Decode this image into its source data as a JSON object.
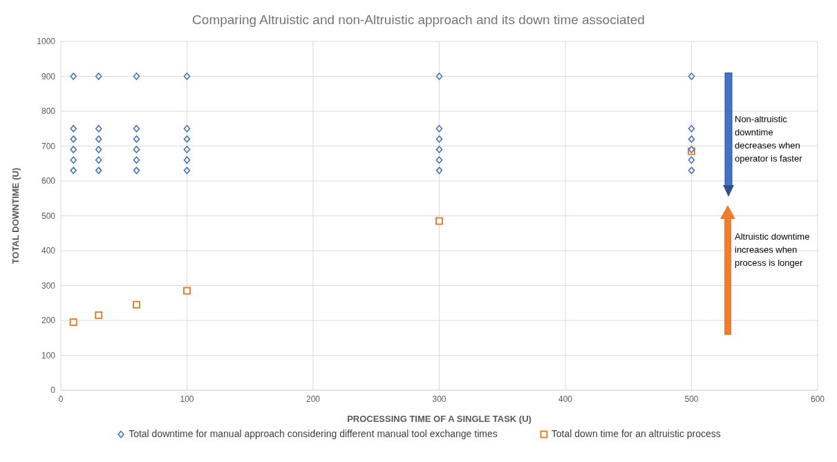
{
  "chart_data": {
    "type": "scatter",
    "title": "Comparing Altruistic and non-Altruistic approach and its down time associated",
    "xlabel": "PROCESSING TIME OF A SINGLE TASK (U)",
    "ylabel": "TOTAL DOWNTIME (U)",
    "xlim": [
      0,
      600
    ],
    "xticks": [
      0,
      100,
      200,
      300,
      400,
      500,
      600
    ],
    "ylim": [
      0,
      1000
    ],
    "yticks": [
      0,
      100,
      200,
      300,
      400,
      500,
      600,
      700,
      800,
      900,
      1000
    ],
    "grid": true,
    "legend": "bottom",
    "series": [
      {
        "name": "Total downtime for manual approach considering different manual tool exchange times",
        "color": "#4472c4",
        "marker": "diamond",
        "x": [
          10,
          10,
          10,
          10,
          10,
          10,
          30,
          30,
          30,
          30,
          30,
          30,
          60,
          60,
          60,
          60,
          60,
          60,
          100,
          100,
          100,
          100,
          100,
          100,
          300,
          300,
          300,
          300,
          300,
          300,
          500,
          500,
          500,
          500,
          500,
          500
        ],
        "values": [
          630,
          660,
          690,
          720,
          750,
          900,
          630,
          660,
          690,
          720,
          750,
          900,
          630,
          660,
          690,
          720,
          750,
          900,
          630,
          660,
          690,
          720,
          750,
          900,
          630,
          660,
          690,
          720,
          750,
          900,
          630,
          660,
          690,
          720,
          750,
          900
        ]
      },
      {
        "name": "Total down time for an altruistic process",
        "color": "#ed7d31",
        "marker": "square",
        "x": [
          10,
          30,
          60,
          100,
          300,
          500
        ],
        "values": [
          195,
          215,
          245,
          285,
          485,
          685
        ]
      }
    ],
    "annotations": [
      "Non-altruistic downtime decreases when operator is faster",
      "Altruistic downtime increases when process is longer"
    ]
  }
}
